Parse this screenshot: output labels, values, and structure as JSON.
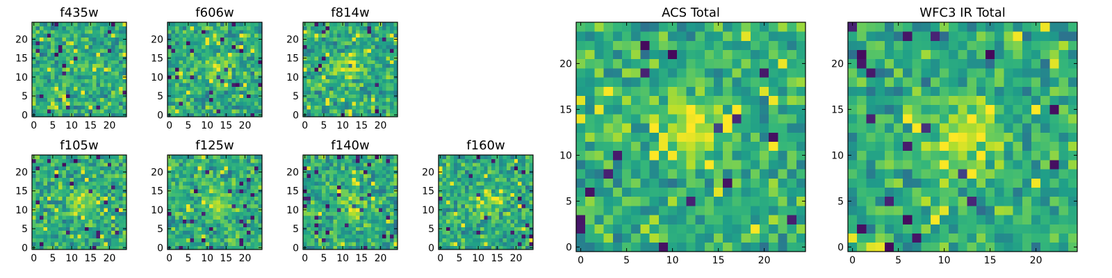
{
  "chart_data": [
    {
      "id": "f435w",
      "type": "heatmap",
      "title": "f435w",
      "size": "small",
      "xticks": [
        "0",
        "5",
        "10",
        "15",
        "20"
      ],
      "yticks": [
        "0",
        "5",
        "10",
        "15",
        "20"
      ],
      "xlim": [
        -0.5,
        24.5
      ],
      "ylim": [
        -0.5,
        24.5
      ],
      "blob": [
        13,
        12,
        0.2
      ],
      "seed": 11,
      "colormap": "viridis"
    },
    {
      "id": "f606w",
      "type": "heatmap",
      "title": "f606w",
      "size": "small",
      "xticks": [
        "0",
        "5",
        "10",
        "15",
        "20"
      ],
      "yticks": [
        "0",
        "5",
        "10",
        "15",
        "20"
      ],
      "xlim": [
        -0.5,
        24.5
      ],
      "ylim": [
        -0.5,
        24.5
      ],
      "blob": [
        13,
        12,
        0.45
      ],
      "seed": 23,
      "colormap": "viridis"
    },
    {
      "id": "f814w",
      "type": "heatmap",
      "title": "f814w",
      "size": "small",
      "xticks": [
        "0",
        "5",
        "10",
        "15",
        "20"
      ],
      "yticks": [
        "0",
        "5",
        "10",
        "15",
        "20"
      ],
      "xlim": [
        -0.5,
        24.5
      ],
      "ylim": [
        -0.5,
        24.5
      ],
      "blob": [
        12,
        13,
        0.7
      ],
      "seed": 37,
      "colormap": "viridis"
    },
    {
      "id": "f105w",
      "type": "heatmap",
      "title": "f105w",
      "size": "small",
      "xticks": [
        "0",
        "5",
        "10",
        "15",
        "20"
      ],
      "yticks": [
        "0",
        "5",
        "10",
        "15",
        "20"
      ],
      "xlim": [
        -0.5,
        24.5
      ],
      "ylim": [
        -0.5,
        24.5
      ],
      "blob": [
        13,
        12,
        0.6
      ],
      "seed": 41,
      "colormap": "viridis"
    },
    {
      "id": "f125w",
      "type": "heatmap",
      "title": "f125w",
      "size": "small",
      "xticks": [
        "0",
        "5",
        "10",
        "15",
        "20"
      ],
      "yticks": [
        "0",
        "5",
        "10",
        "15",
        "20"
      ],
      "xlim": [
        -0.5,
        24.5
      ],
      "ylim": [
        -0.5,
        24.5
      ],
      "blob": [
        13,
        12,
        0.5
      ],
      "seed": 53,
      "colormap": "viridis"
    },
    {
      "id": "f140w",
      "type": "heatmap",
      "title": "f140w",
      "size": "small",
      "xticks": [
        "0",
        "5",
        "10",
        "15",
        "20"
      ],
      "yticks": [
        "0",
        "5",
        "10",
        "15",
        "20"
      ],
      "xlim": [
        -0.5,
        24.5
      ],
      "ylim": [
        -0.5,
        24.5
      ],
      "blob": [
        13,
        12,
        0.55
      ],
      "seed": 67,
      "colormap": "viridis"
    },
    {
      "id": "f160w",
      "type": "heatmap",
      "title": "f160w",
      "size": "small",
      "xticks": [
        "0",
        "5",
        "10",
        "15",
        "20"
      ],
      "yticks": [
        "0",
        "5",
        "10",
        "15",
        "20"
      ],
      "xlim": [
        -0.5,
        24.5
      ],
      "ylim": [
        -0.5,
        24.5
      ],
      "blob": [
        12,
        12,
        0.5
      ],
      "seed": 79,
      "colormap": "viridis"
    },
    {
      "id": "acs-total",
      "type": "heatmap",
      "title": "ACS Total",
      "size": "large",
      "xticks": [
        "0",
        "5",
        "10",
        "15",
        "20"
      ],
      "yticks": [
        "0",
        "5",
        "10",
        "15",
        "20"
      ],
      "xlim": [
        -0.5,
        24.5
      ],
      "ylim": [
        -0.5,
        24.5
      ],
      "blob": [
        12,
        13,
        0.75
      ],
      "seed": 97,
      "colormap": "viridis"
    },
    {
      "id": "wfc3-ir-total",
      "type": "heatmap",
      "title": "WFC3 IR Total",
      "size": "large",
      "xticks": [
        "0",
        "5",
        "10",
        "15",
        "20"
      ],
      "yticks": [
        "0",
        "5",
        "10",
        "15",
        "20"
      ],
      "xlim": [
        -0.5,
        24.5
      ],
      "ylim": [
        -0.5,
        24.5
      ],
      "blob": [
        12,
        12,
        0.8
      ],
      "seed": 113,
      "colormap": "viridis"
    }
  ]
}
